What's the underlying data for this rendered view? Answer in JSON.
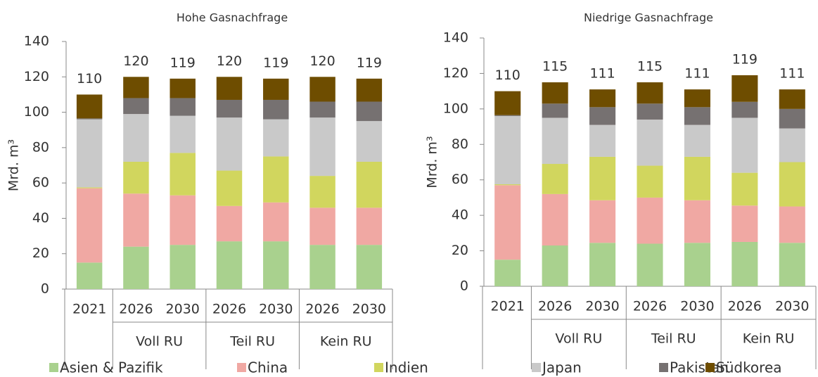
{
  "chart_data": [
    {
      "type": "stacked_bar",
      "title": "Hohe Gasnachfrage",
      "y_label": "Mrd. m³",
      "categories": [
        "2021",
        "2026",
        "2030",
        "2026",
        "2030",
        "2026",
        "2030"
      ],
      "groups": [
        "Voll RU",
        "Teil RU",
        "Kein RU"
      ],
      "ylim": [
        0,
        140
      ],
      "yticks": [
        0,
        20,
        40,
        60,
        80,
        100,
        120,
        140
      ],
      "totals": [
        110,
        120,
        119,
        120,
        119,
        120,
        119
      ],
      "series": [
        {
          "name": "Asien & Pazifik",
          "color": "#a9d18e",
          "values": [
            15,
            24,
            25,
            27,
            27,
            25,
            25
          ]
        },
        {
          "name": "China",
          "color": "#f0a8a3",
          "values": [
            42,
            30,
            28,
            20,
            22,
            21,
            21
          ]
        },
        {
          "name": "Indien",
          "color": "#d1d65e",
          "values": [
            0.5,
            18,
            24,
            20,
            26,
            18,
            26
          ]
        },
        {
          "name": "Japan",
          "color": "#c9c9c9",
          "values": [
            38.5,
            27,
            21,
            30,
            21,
            33,
            23
          ]
        },
        {
          "name": "Pakistan",
          "color": "#767171",
          "values": [
            0.5,
            9,
            10,
            10,
            11,
            9,
            11
          ]
        },
        {
          "name": "Südkorea",
          "color": "#6e4d00",
          "values": [
            13.5,
            12,
            11,
            13,
            12,
            14,
            13
          ]
        }
      ]
    },
    {
      "type": "stacked_bar",
      "title": "Niedrige Gasnachfrage",
      "y_label": "Mrd. m³",
      "categories": [
        "2021",
        "2026",
        "2030",
        "2026",
        "2030",
        "2026",
        "2030"
      ],
      "groups": [
        "Voll RU",
        "Teil RU",
        "Kein RU"
      ],
      "ylim": [
        0,
        140
      ],
      "yticks": [
        0,
        20,
        40,
        60,
        80,
        100,
        120,
        140
      ],
      "totals": [
        110,
        115,
        111,
        115,
        111,
        119,
        111
      ],
      "series": [
        {
          "name": "Asien & Pazifik",
          "color": "#a9d18e",
          "values": [
            15,
            23,
            24.5,
            24,
            24.5,
            25,
            24.5
          ]
        },
        {
          "name": "China",
          "color": "#f0a8a3",
          "values": [
            42,
            29,
            24,
            26,
            24,
            20.5,
            20.5
          ]
        },
        {
          "name": "Indien",
          "color": "#d1d65e",
          "values": [
            0.5,
            17,
            24.5,
            18,
            24.5,
            18.5,
            25
          ]
        },
        {
          "name": "Japan",
          "color": "#c9c9c9",
          "values": [
            38.5,
            26,
            18,
            26,
            18,
            31,
            19
          ]
        },
        {
          "name": "Pakistan",
          "color": "#767171",
          "values": [
            0.5,
            8,
            10,
            9,
            10,
            9,
            11
          ]
        },
        {
          "name": "Südkorea",
          "color": "#6e4d00",
          "values": [
            13.5,
            12,
            10,
            12,
            10,
            15,
            11
          ]
        }
      ]
    }
  ]
}
